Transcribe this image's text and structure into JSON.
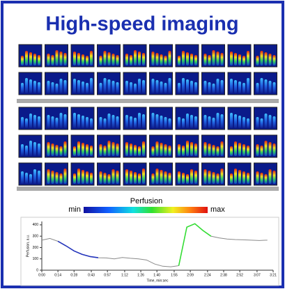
{
  "header": {
    "title": "High-speed imaging"
  },
  "colorbar": {
    "label": "Perfusion",
    "min": "min",
    "max": "max"
  },
  "chart_data": {
    "type": "line",
    "y_label": "Perfusion, a.u.",
    "x_label": "Time, min:sec",
    "x": [
      0,
      7,
      14,
      21,
      28,
      35,
      42,
      49,
      56,
      63,
      70,
      77,
      84,
      91,
      98,
      105,
      112,
      119,
      126,
      133,
      140,
      147,
      154,
      161,
      168,
      175,
      182,
      189,
      196
    ],
    "series": [
      {
        "color": "#8a8a8a",
        "values": [
          265,
          280,
          255,
          215,
          170,
          140,
          120,
          110,
          108,
          100,
          112,
          105,
          100,
          90,
          55,
          35,
          30,
          40,
          380,
          410,
          350,
          300,
          285,
          275,
          270,
          268,
          265,
          262,
          265
        ]
      },
      {
        "color": "#2233bb",
        "values": [
          null,
          null,
          255,
          215,
          170,
          140,
          120,
          110,
          null,
          null,
          null,
          null,
          null,
          null,
          null,
          null,
          null,
          null,
          null,
          null,
          null,
          null,
          null,
          null,
          null,
          null,
          null,
          null,
          null
        ]
      },
      {
        "color": "#33dd33",
        "values": [
          null,
          null,
          null,
          null,
          null,
          null,
          null,
          null,
          null,
          null,
          null,
          null,
          null,
          null,
          null,
          null,
          null,
          40,
          380,
          410,
          350,
          300,
          null,
          null,
          null,
          null,
          null,
          null,
          null
        ]
      }
    ],
    "xlim": [
      0,
      201
    ],
    "ylim": [
      0,
      430
    ],
    "xticks": [
      {
        "value": 0,
        "label": "0:00"
      },
      {
        "value": 14,
        "label": "0:14"
      },
      {
        "value": 28,
        "label": "0:28"
      },
      {
        "value": 43,
        "label": "0:43"
      },
      {
        "value": 57,
        "label": "0:57"
      },
      {
        "value": 72,
        "label": "1:12"
      },
      {
        "value": 86,
        "label": "1:26"
      },
      {
        "value": 100,
        "label": "1:40"
      },
      {
        "value": 115,
        "label": "1:55"
      },
      {
        "value": 129,
        "label": "2:09"
      },
      {
        "value": 144,
        "label": "2:24"
      },
      {
        "value": 158,
        "label": "2:38"
      },
      {
        "value": 172,
        "label": "2:52"
      },
      {
        "value": 187,
        "label": "3:07"
      },
      {
        "value": 201,
        "label": "3:21"
      }
    ],
    "yticks": [
      0,
      100,
      200,
      300,
      400
    ],
    "grid": false
  }
}
